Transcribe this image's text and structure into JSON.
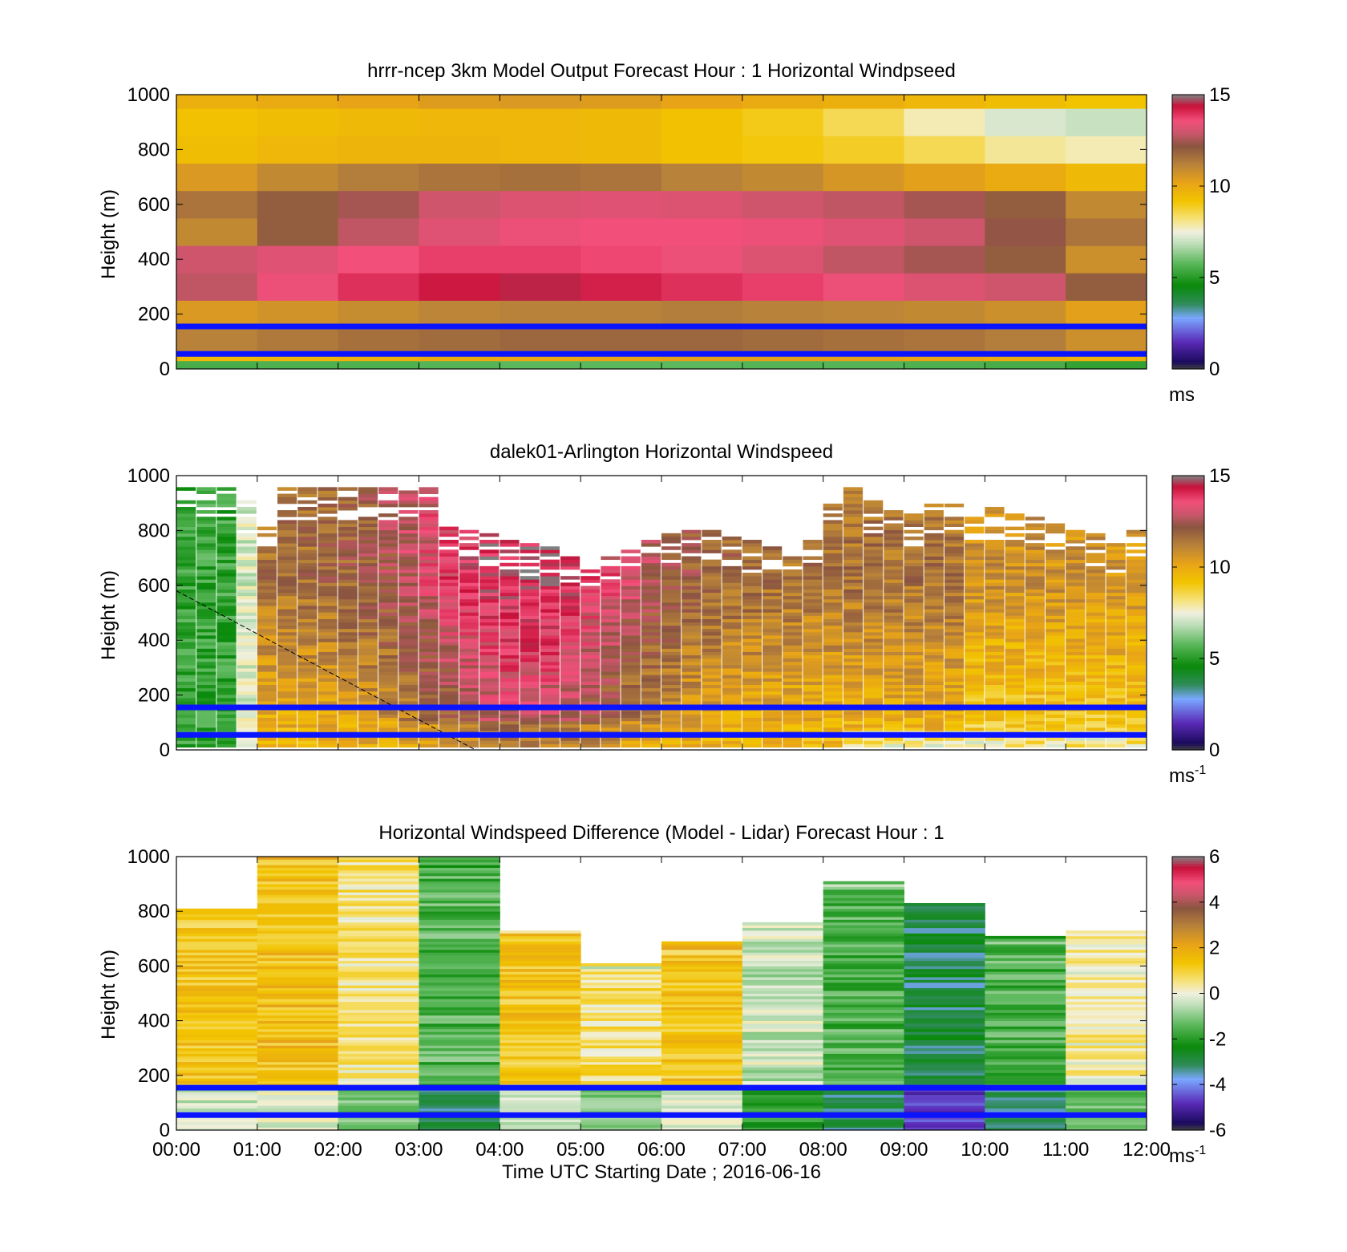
{
  "figure": {
    "xlabel": "Time UTC  Starting Date ; 2016-06-16",
    "x_ticks": [
      "00:00",
      "01:00",
      "02:00",
      "03:00",
      "04:00",
      "05:00",
      "06:00",
      "07:00",
      "08:00",
      "09:00",
      "10:00",
      "11:00",
      "12:00"
    ]
  },
  "chart_data": [
    {
      "type": "heatmap",
      "title": "hrrr-ncep 3km Model Output   Forecast Hour : 1 Horizontal Windpseed",
      "ylabel": "Height (m)",
      "ylim": [
        0,
        1000
      ],
      "y_ticks": [
        "0",
        "200",
        "400",
        "600",
        "800",
        "1000"
      ],
      "colorbar": {
        "range": [
          0,
          15
        ],
        "ticks": [
          "0",
          "5",
          "10",
          "15"
        ],
        "unit": "ms",
        "unit_sup": ""
      },
      "x_hours": [
        0,
        1,
        2,
        3,
        4,
        5,
        6,
        7,
        8,
        9,
        10,
        11
      ],
      "y_bins_m": [
        0,
        30,
        60,
        150,
        250,
        350,
        450,
        550,
        650,
        750,
        850,
        950
      ],
      "z": [
        [
          5.5,
          5.6,
          5.6,
          5.7,
          5.8,
          5.8,
          5.8,
          5.7,
          5.7,
          5.6,
          5.5,
          5.2
        ],
        [
          9.6,
          9.7,
          9.8,
          10,
          10.1,
          10.2,
          10.3,
          10.3,
          10.3,
          10.2,
          10.0,
          9.8
        ],
        [
          11.2,
          11.4,
          11.6,
          11.7,
          11.8,
          11.8,
          11.8,
          11.7,
          11.6,
          11.5,
          11.3,
          10.8
        ],
        [
          10.5,
          10.7,
          10.9,
          11.1,
          11.2,
          11.2,
          11.3,
          11.2,
          11.1,
          11.0,
          10.8,
          10.3
        ],
        [
          12.8,
          13.5,
          14.0,
          14.3,
          14.5,
          14.2,
          14.0,
          13.8,
          13.5,
          13.2,
          13.0,
          12.0
        ],
        [
          13.0,
          13.3,
          13.6,
          13.8,
          13.8,
          13.7,
          13.5,
          13.2,
          12.8,
          12.5,
          12.0,
          10.8
        ],
        [
          11.0,
          12.0,
          12.8,
          13.3,
          13.5,
          13.6,
          13.6,
          13.5,
          13.3,
          13.0,
          12.3,
          11.5
        ],
        [
          11.5,
          12.0,
          12.5,
          13.0,
          13.2,
          13.3,
          13.2,
          13.0,
          12.8,
          12.5,
          12.0,
          11.0
        ],
        [
          10.5,
          11.0,
          11.3,
          11.5,
          11.6,
          11.5,
          11.2,
          11.0,
          10.6,
          10.3,
          10.0,
          9.5
        ],
        [
          9.4,
          9.6,
          9.7,
          9.7,
          9.6,
          9.5,
          9.3,
          9.1,
          8.9,
          8.5,
          8.0,
          7.8
        ],
        [
          9.3,
          9.4,
          9.5,
          9.6,
          9.6,
          9.5,
          9.3,
          9.0,
          8.5,
          7.8,
          7.2,
          7.0
        ],
        [
          9.8,
          10.0,
          10.2,
          10.4,
          10.5,
          10.4,
          10.2,
          10.0,
          9.8,
          9.6,
          9.4,
          9.2
        ]
      ],
      "hlines_m": [
        155,
        55
      ]
    },
    {
      "type": "heatmap",
      "title": "dalek01-Arlington  Horizontal Windspeed",
      "ylabel": "Height (m)",
      "ylim": [
        0,
        1000
      ],
      "y_ticks": [
        "0",
        "200",
        "400",
        "600",
        "800",
        "1000"
      ],
      "colorbar": {
        "range": [
          0,
          15
        ],
        "ticks": [
          "0",
          "5",
          "10",
          "15"
        ],
        "unit": "ms",
        "unit_sup": "-1"
      },
      "x_hours": [
        0,
        0.25,
        0.5,
        0.75,
        1,
        1.25,
        1.5,
        1.75,
        2,
        2.25,
        2.5,
        2.75,
        3,
        3.25,
        3.5,
        3.75,
        4,
        4.25,
        4.5,
        4.75,
        5,
        5.25,
        5.5,
        5.75,
        6,
        6.25,
        6.5,
        6.75,
        7,
        7.25,
        7.5,
        7.75,
        8,
        8.25,
        8.5,
        8.75,
        9,
        9.25,
        9.5,
        9.75,
        10,
        10.25,
        10.5,
        10.75,
        11,
        11.25,
        11.5,
        11.75
      ],
      "top_m": [
        950,
        950,
        950,
        900,
        820,
        950,
        950,
        950,
        950,
        950,
        950,
        950,
        950,
        820,
        800,
        780,
        760,
        750,
        740,
        700,
        680,
        700,
        720,
        760,
        780,
        800,
        800,
        780,
        760,
        740,
        720,
        800,
        900,
        950,
        900,
        880,
        860,
        900,
        900,
        880,
        880,
        860,
        850,
        820,
        800,
        780,
        760,
        800
      ],
      "profile": "speed rises with height and time; pink jet 04:00-05:00; sampled rows",
      "hlines_m": [
        155,
        55
      ],
      "diagonal_line": {
        "from": [
          0,
          580
        ],
        "to": [
          3.7,
          0
        ]
      }
    },
    {
      "type": "heatmap",
      "title": "Horizontal Windspeed Difference (Model - Lidar) Forecast Hour : 1",
      "ylabel": "Height (m)",
      "ylim": [
        0,
        1000
      ],
      "y_ticks": [
        "0",
        "200",
        "400",
        "600",
        "800",
        "1000"
      ],
      "colorbar": {
        "range": [
          -6,
          6
        ],
        "ticks": [
          "-6",
          "-4",
          "-2",
          "0",
          "2",
          "4",
          "6"
        ],
        "unit": "ms",
        "unit_sup": "-1"
      },
      "x_hours": [
        0,
        1,
        2,
        3,
        4,
        5,
        6,
        7,
        8,
        9,
        10,
        11
      ],
      "top_m": [
        810,
        1000,
        1000,
        1000,
        730,
        610,
        690,
        760,
        910,
        830,
        710,
        730
      ],
      "mean_diff": [
        1.2,
        1.5,
        0.5,
        -1.5,
        1.3,
        0.6,
        1.3,
        -0.4,
        -1.5,
        -3.0,
        -1.5,
        0.3
      ],
      "hlines_m": [
        155,
        55
      ]
    }
  ]
}
